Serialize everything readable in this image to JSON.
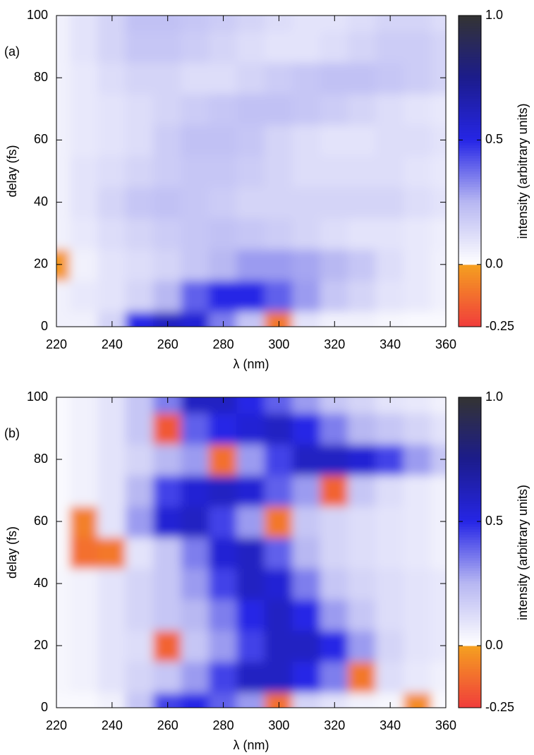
{
  "chart_data": [
    {
      "type": "heatmap",
      "panel_label": "(a)",
      "xlabel": "λ (nm)",
      "ylabel": "delay (fs)",
      "colorbar_label": "intensity (arbitrary units)",
      "x": [
        220,
        230,
        240,
        250,
        260,
        270,
        280,
        290,
        300,
        310,
        320,
        330,
        340,
        350,
        360
      ],
      "y": [
        0,
        10,
        20,
        30,
        40,
        50,
        60,
        70,
        80,
        90,
        100
      ],
      "z": [
        [
          0.05,
          0.05,
          0.15,
          0.5,
          0.6,
          0.55,
          0.35,
          0.2,
          -0.1,
          0.1,
          0.05,
          0.05,
          0.03,
          0.02,
          0.02
        ],
        [
          0.05,
          0.08,
          0.1,
          0.15,
          0.25,
          0.4,
          0.5,
          0.5,
          0.4,
          0.3,
          0.2,
          0.15,
          0.1,
          0.08,
          0.05
        ],
        [
          -0.02,
          0.05,
          0.1,
          0.12,
          0.15,
          0.2,
          0.25,
          0.3,
          0.3,
          0.28,
          0.25,
          0.2,
          0.12,
          0.08,
          0.05
        ],
        [
          0.05,
          0.08,
          0.12,
          0.15,
          0.18,
          0.2,
          0.22,
          0.2,
          0.18,
          0.15,
          0.12,
          0.1,
          0.1,
          0.08,
          0.06
        ],
        [
          0.05,
          0.1,
          0.15,
          0.2,
          0.22,
          0.2,
          0.18,
          0.15,
          0.15,
          0.15,
          0.15,
          0.15,
          0.15,
          0.12,
          0.1
        ],
        [
          0.05,
          0.1,
          0.12,
          0.15,
          0.18,
          0.2,
          0.2,
          0.18,
          0.15,
          0.12,
          0.12,
          0.12,
          0.12,
          0.1,
          0.08
        ],
        [
          0.05,
          0.08,
          0.1,
          0.12,
          0.18,
          0.22,
          0.22,
          0.2,
          0.15,
          0.12,
          0.1,
          0.1,
          0.12,
          0.12,
          0.1
        ],
        [
          0.05,
          0.08,
          0.1,
          0.12,
          0.15,
          0.18,
          0.2,
          0.22,
          0.22,
          0.2,
          0.18,
          0.15,
          0.12,
          0.1,
          0.08
        ],
        [
          0.05,
          0.08,
          0.12,
          0.15,
          0.15,
          0.12,
          0.12,
          0.15,
          0.18,
          0.2,
          0.22,
          0.22,
          0.2,
          0.18,
          0.15
        ],
        [
          0.05,
          0.1,
          0.15,
          0.2,
          0.2,
          0.18,
          0.15,
          0.12,
          0.1,
          0.1,
          0.12,
          0.15,
          0.18,
          0.18,
          0.15
        ],
        [
          0.05,
          0.1,
          0.15,
          0.22,
          0.22,
          0.2,
          0.18,
          0.15,
          0.12,
          0.1,
          0.1,
          0.12,
          0.15,
          0.15,
          0.12
        ]
      ],
      "xlim": [
        220,
        360
      ],
      "ylim": [
        0,
        100
      ],
      "xticks": [
        220,
        240,
        260,
        280,
        300,
        320,
        340,
        360
      ],
      "yticks": [
        0,
        20,
        40,
        60,
        80,
        100
      ],
      "clim": [
        -0.25,
        1.0
      ],
      "cticks": [
        {
          "value": -0.25,
          "label": "-0.25"
        },
        {
          "value": 0,
          "label": "0.0"
        },
        {
          "value": 0.5,
          "label": "0.5"
        },
        {
          "value": 1,
          "label": "1.0"
        }
      ],
      "colors_negative": [
        "#f03c3c",
        "#f5a020"
      ],
      "colors_positive": [
        "#ffffff",
        "#b8b8f2",
        "#2626e6",
        "#1c1c8c",
        "#333333"
      ]
    },
    {
      "type": "heatmap",
      "panel_label": "(b)",
      "xlabel": "λ (nm)",
      "ylabel": "delay (fs)",
      "colorbar_label": "intensity (arbitrary units)",
      "x": [
        220,
        230,
        240,
        250,
        260,
        270,
        280,
        290,
        300,
        310,
        320,
        330,
        340,
        350,
        360
      ],
      "y": [
        0,
        10,
        20,
        30,
        40,
        50,
        60,
        70,
        80,
        90,
        100
      ],
      "z": [
        [
          0.02,
          0.02,
          0.05,
          0.2,
          0.45,
          0.5,
          0.4,
          0.3,
          -0.12,
          0.15,
          0.1,
          0.05,
          0.03,
          -0.05,
          0.02
        ],
        [
          0.03,
          0.05,
          0.1,
          0.15,
          0.2,
          0.3,
          0.45,
          0.6,
          0.6,
          0.5,
          0.35,
          -0.1,
          0.12,
          0.08,
          0.05
        ],
        [
          0.03,
          0.05,
          0.1,
          0.12,
          -0.15,
          0.2,
          0.3,
          0.45,
          0.6,
          0.6,
          0.5,
          0.3,
          0.15,
          0.1,
          0.08
        ],
        [
          0.03,
          0.05,
          0.1,
          0.15,
          0.2,
          0.25,
          0.35,
          0.5,
          0.6,
          0.5,
          0.3,
          0.2,
          0.12,
          0.1,
          0.08
        ],
        [
          0.03,
          0.05,
          0.1,
          0.15,
          0.2,
          0.3,
          0.45,
          0.6,
          0.55,
          0.35,
          0.2,
          0.15,
          0.12,
          0.1,
          0.08
        ],
        [
          0.02,
          -0.12,
          -0.1,
          0.1,
          0.2,
          0.35,
          0.55,
          0.6,
          0.4,
          0.25,
          0.15,
          0.12,
          0.1,
          0.08,
          0.05
        ],
        [
          0.02,
          -0.08,
          0.1,
          0.3,
          0.55,
          0.6,
          0.45,
          0.3,
          -0.1,
          0.2,
          0.15,
          0.12,
          0.1,
          0.08,
          0.05
        ],
        [
          0.02,
          0.05,
          0.1,
          0.25,
          0.45,
          0.55,
          0.6,
          0.55,
          0.4,
          0.3,
          -0.15,
          0.2,
          0.12,
          0.08,
          0.05
        ],
        [
          0.02,
          0.05,
          0.1,
          0.15,
          0.25,
          0.3,
          -0.12,
          0.3,
          0.45,
          0.6,
          0.6,
          0.55,
          0.45,
          0.3,
          0.2
        ],
        [
          0.02,
          0.05,
          0.1,
          0.2,
          -0.18,
          0.4,
          0.5,
          0.55,
          0.6,
          0.5,
          0.35,
          0.25,
          0.2,
          0.15,
          0.1
        ],
        [
          0.02,
          0.05,
          0.1,
          0.2,
          0.35,
          0.6,
          0.6,
          0.5,
          0.4,
          0.3,
          0.2,
          0.15,
          0.1,
          0.08,
          0.05
        ]
      ],
      "xlim": [
        220,
        360
      ],
      "ylim": [
        0,
        100
      ],
      "xticks": [
        220,
        240,
        260,
        280,
        300,
        320,
        340,
        360
      ],
      "yticks": [
        0,
        20,
        40,
        60,
        80,
        100
      ],
      "clim": [
        -0.25,
        1.0
      ],
      "cticks": [
        {
          "value": -0.25,
          "label": "-0.25"
        },
        {
          "value": 0,
          "label": "0.0"
        },
        {
          "value": 0.5,
          "label": "0.5"
        },
        {
          "value": 1,
          "label": "1.0"
        }
      ],
      "colors_negative": [
        "#f03c3c",
        "#f5a020"
      ],
      "colors_positive": [
        "#ffffff",
        "#b8b8f2",
        "#2626e6",
        "#1c1c8c",
        "#333333"
      ]
    }
  ]
}
